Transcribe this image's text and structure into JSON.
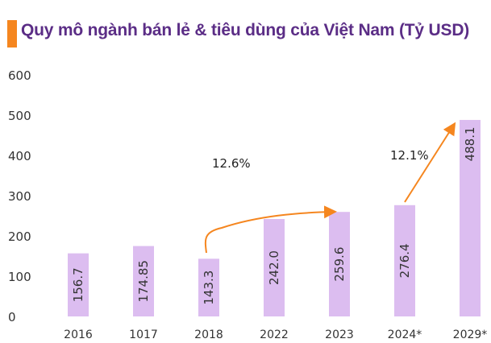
{
  "chart_data": {
    "type": "bar",
    "title": "Quy mô ngành bán lẻ & tiêu dùng của Việt Nam (Tỷ USD)",
    "categories": [
      "2016",
      "1017",
      "2018",
      "2022",
      "2023",
      "2024*",
      "2029*"
    ],
    "values": [
      156.7,
      174.85,
      143.3,
      242.0,
      259.6,
      276.4,
      488.1
    ],
    "value_labels": [
      "156.7",
      "174.85",
      "143.3",
      "242.0",
      "259.6",
      "276.4",
      "488.1"
    ],
    "ylim": [
      0,
      600
    ],
    "yticks": [
      0,
      100,
      200,
      300,
      400,
      500,
      600
    ],
    "grid": false,
    "annotations": [
      {
        "text": "12.6%",
        "from": "2018",
        "to": "2023"
      },
      {
        "text": "12.1%",
        "from": "2024*",
        "to": "2029*"
      }
    ],
    "colors": {
      "bar": "#dcbdf0",
      "title": "#5b2d86",
      "accent": "#f5861f",
      "arrow": "#f5861f",
      "text": "#333333"
    }
  }
}
